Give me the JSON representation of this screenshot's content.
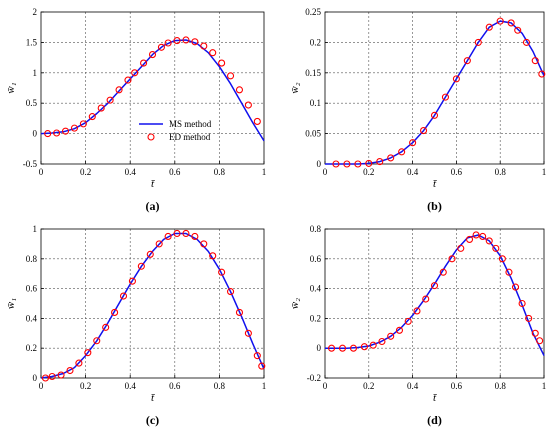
{
  "colors": {
    "curve": "#1010ee",
    "marker": "#ff0000",
    "grid": "#555555",
    "axis": "#000000"
  },
  "legend": {
    "panel_index": 0,
    "placement": "bottom-center",
    "entries": [
      {
        "label": "MS method",
        "style": "line"
      },
      {
        "label": "ED method",
        "style": "circle"
      }
    ]
  },
  "chart_data": [
    {
      "type": "line",
      "panel_label": "(a)",
      "xlabel": "t̄",
      "ylabel": "w̄₁",
      "xlim": [
        0,
        1
      ],
      "ylim": [
        -0.5,
        2
      ],
      "xticks": [
        0,
        0.2,
        0.4,
        0.6,
        0.8,
        1
      ],
      "yticks": [
        -0.5,
        0,
        0.5,
        1,
        1.5,
        2
      ],
      "ytick_labels": [
        "-0.5",
        "0",
        "0.5",
        "1",
        "1.5",
        "2"
      ],
      "grid": true,
      "series": [
        {
          "name": "MS method",
          "style": "line",
          "x": [
            0,
            0.05,
            0.1,
            0.15,
            0.2,
            0.25,
            0.3,
            0.35,
            0.4,
            0.45,
            0.5,
            0.55,
            0.6,
            0.65,
            0.7,
            0.75,
            0.8,
            0.85,
            0.9,
            0.95,
            1
          ],
          "y": [
            0,
            0.01,
            0.03,
            0.08,
            0.18,
            0.33,
            0.5,
            0.7,
            0.9,
            1.1,
            1.3,
            1.45,
            1.53,
            1.54,
            1.48,
            1.33,
            1.1,
            0.82,
            0.5,
            0.18,
            -0.12
          ]
        },
        {
          "name": "ED method",
          "style": "circle",
          "x": [
            0.03,
            0.07,
            0.11,
            0.15,
            0.19,
            0.23,
            0.27,
            0.31,
            0.35,
            0.39,
            0.42,
            0.46,
            0.5,
            0.54,
            0.57,
            0.61,
            0.65,
            0.69,
            0.73,
            0.77,
            0.81,
            0.85,
            0.89,
            0.93,
            0.97
          ],
          "y": [
            0,
            0.01,
            0.04,
            0.09,
            0.16,
            0.28,
            0.42,
            0.55,
            0.72,
            0.88,
            1.0,
            1.16,
            1.3,
            1.42,
            1.49,
            1.53,
            1.54,
            1.51,
            1.44,
            1.33,
            1.16,
            0.95,
            0.72,
            0.47,
            0.2
          ]
        }
      ]
    },
    {
      "type": "line",
      "panel_label": "(b)",
      "xlabel": "t̄",
      "ylabel": "w̄₂",
      "xlim": [
        0,
        1
      ],
      "ylim": [
        0,
        0.25
      ],
      "xticks": [
        0,
        0.2,
        0.4,
        0.6,
        0.8,
        1
      ],
      "yticks": [
        0,
        0.05,
        0.1,
        0.15,
        0.2,
        0.25
      ],
      "ytick_labels": [
        "0",
        "0.05",
        "0.1",
        "0.15",
        "0.2",
        "0.25"
      ],
      "grid": true,
      "series": [
        {
          "name": "MS method",
          "style": "line",
          "x": [
            0,
            0.05,
            0.1,
            0.15,
            0.2,
            0.25,
            0.3,
            0.35,
            0.4,
            0.45,
            0.5,
            0.55,
            0.6,
            0.65,
            0.7,
            0.75,
            0.8,
            0.85,
            0.9,
            0.95,
            1
          ],
          "y": [
            0,
            0,
            0,
            0,
            0.001,
            0.004,
            0.01,
            0.02,
            0.035,
            0.055,
            0.08,
            0.11,
            0.14,
            0.17,
            0.2,
            0.225,
            0.235,
            0.232,
            0.215,
            0.185,
            0.145
          ]
        },
        {
          "name": "ED method",
          "style": "circle",
          "x": [
            0.05,
            0.1,
            0.15,
            0.2,
            0.25,
            0.3,
            0.35,
            0.4,
            0.45,
            0.5,
            0.55,
            0.6,
            0.65,
            0.7,
            0.75,
            0.8,
            0.85,
            0.88,
            0.92,
            0.96,
            0.99
          ],
          "y": [
            0,
            0,
            0,
            0.001,
            0.004,
            0.01,
            0.02,
            0.035,
            0.055,
            0.08,
            0.11,
            0.14,
            0.17,
            0.2,
            0.225,
            0.235,
            0.232,
            0.22,
            0.2,
            0.17,
            0.148
          ]
        }
      ]
    },
    {
      "type": "line",
      "panel_label": "(c)",
      "xlabel": "t̄",
      "ylabel": "w̄₁",
      "xlim": [
        0,
        1
      ],
      "ylim": [
        0,
        1
      ],
      "xticks": [
        0,
        0.2,
        0.4,
        0.6,
        0.8,
        1
      ],
      "yticks": [
        0,
        0.2,
        0.4,
        0.6,
        0.8,
        1
      ],
      "ytick_labels": [
        "0",
        "0.2",
        "0.4",
        "0.6",
        "0.8",
        "1"
      ],
      "grid": true,
      "series": [
        {
          "name": "MS method",
          "style": "line",
          "x": [
            0,
            0.05,
            0.1,
            0.15,
            0.2,
            0.25,
            0.3,
            0.35,
            0.4,
            0.45,
            0.5,
            0.55,
            0.6,
            0.65,
            0.7,
            0.75,
            0.8,
            0.85,
            0.9,
            0.95,
            1
          ],
          "y": [
            0,
            0.01,
            0.03,
            0.07,
            0.15,
            0.25,
            0.37,
            0.5,
            0.63,
            0.75,
            0.85,
            0.93,
            0.97,
            0.97,
            0.93,
            0.85,
            0.73,
            0.58,
            0.41,
            0.23,
            0.06
          ]
        },
        {
          "name": "ED method",
          "style": "circle",
          "x": [
            0.02,
            0.05,
            0.09,
            0.13,
            0.17,
            0.21,
            0.25,
            0.29,
            0.33,
            0.37,
            0.41,
            0.45,
            0.49,
            0.53,
            0.57,
            0.61,
            0.65,
            0.69,
            0.73,
            0.77,
            0.81,
            0.85,
            0.89,
            0.93,
            0.97,
            0.99
          ],
          "y": [
            0,
            0.01,
            0.02,
            0.05,
            0.1,
            0.17,
            0.25,
            0.34,
            0.44,
            0.55,
            0.65,
            0.75,
            0.83,
            0.9,
            0.95,
            0.97,
            0.97,
            0.95,
            0.9,
            0.82,
            0.71,
            0.58,
            0.44,
            0.3,
            0.15,
            0.08
          ]
        }
      ]
    },
    {
      "type": "line",
      "panel_label": "(d)",
      "xlabel": "t̄",
      "ylabel": "w̄₂",
      "xlim": [
        0,
        1
      ],
      "ylim": [
        -0.2,
        0.8
      ],
      "xticks": [
        0,
        0.2,
        0.4,
        0.6,
        0.8,
        1
      ],
      "yticks": [
        -0.2,
        0,
        0.2,
        0.4,
        0.6,
        0.8
      ],
      "ytick_labels": [
        "-0.2",
        "0",
        "0.2",
        "0.4",
        "0.6",
        "0.8"
      ],
      "grid": true,
      "series": [
        {
          "name": "MS method",
          "style": "line",
          "x": [
            0,
            0.05,
            0.1,
            0.15,
            0.2,
            0.25,
            0.3,
            0.35,
            0.4,
            0.45,
            0.5,
            0.55,
            0.6,
            0.65,
            0.7,
            0.75,
            0.8,
            0.85,
            0.9,
            0.95,
            1
          ],
          "y": [
            0,
            0,
            0,
            0.005,
            0.015,
            0.04,
            0.08,
            0.14,
            0.22,
            0.32,
            0.43,
            0.55,
            0.66,
            0.74,
            0.76,
            0.72,
            0.62,
            0.47,
            0.29,
            0.1,
            -0.05
          ]
        },
        {
          "name": "ED method",
          "style": "circle",
          "x": [
            0.03,
            0.08,
            0.13,
            0.18,
            0.22,
            0.26,
            0.3,
            0.34,
            0.38,
            0.42,
            0.46,
            0.5,
            0.54,
            0.58,
            0.62,
            0.66,
            0.69,
            0.72,
            0.75,
            0.78,
            0.81,
            0.84,
            0.87,
            0.9,
            0.93,
            0.96,
            0.98
          ],
          "y": [
            0,
            0,
            0,
            0.01,
            0.02,
            0.045,
            0.08,
            0.12,
            0.18,
            0.25,
            0.33,
            0.42,
            0.51,
            0.6,
            0.67,
            0.73,
            0.76,
            0.75,
            0.72,
            0.67,
            0.6,
            0.51,
            0.41,
            0.3,
            0.2,
            0.1,
            0.05
          ]
        }
      ]
    }
  ]
}
